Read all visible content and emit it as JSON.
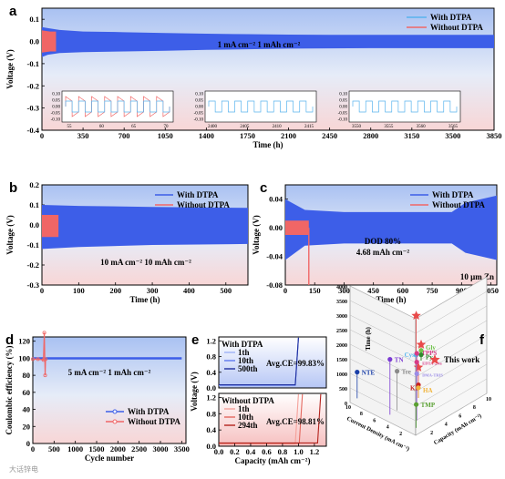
{
  "watermark": "大话锌电",
  "chart_data": [
    {
      "id": "a",
      "type": "line",
      "letter": "a",
      "xlabel": "Time (h)",
      "ylabel": "Voltage (V)",
      "xlim": [
        0,
        3850
      ],
      "ylim": [
        -0.4,
        0.15
      ],
      "xticks": [
        0,
        350,
        700,
        1050,
        1400,
        1750,
        2100,
        2450,
        2800,
        3150,
        3500,
        3850
      ],
      "yticks": [
        -0.4,
        -0.3,
        -0.2,
        -0.1,
        0.0,
        0.1
      ],
      "ytick_labels": [
        "-0.4",
        "-0.3",
        "-0.2",
        "-0.1",
        "0.0",
        "0.1"
      ],
      "series": [
        {
          "name": "With DTPA",
          "color": "#3d5ee8",
          "x": [
            0,
            50,
            150,
            350,
            700,
            1050,
            1400,
            1750,
            2100,
            2450,
            2800,
            3150,
            3500,
            3850
          ],
          "upper": [
            0.065,
            0.06,
            0.052,
            0.045,
            0.042,
            0.038,
            0.035,
            0.033,
            0.031,
            0.03,
            0.03,
            0.03,
            0.03,
            0.03
          ],
          "lower": [
            -0.07,
            -0.06,
            -0.052,
            -0.048,
            -0.045,
            -0.042,
            -0.038,
            -0.035,
            -0.032,
            -0.031,
            -0.03,
            -0.03,
            -0.03,
            -0.03
          ]
        },
        {
          "name": "Without DTPA",
          "color": "#f06666",
          "x": [
            0,
            70,
            120
          ],
          "upper": [
            0.05,
            0.045,
            0.045
          ],
          "lower": [
            -0.05,
            -0.045,
            -0.045
          ]
        }
      ],
      "legend": [
        {
          "name": "With DTPA",
          "color": "#59b4ee"
        },
        {
          "name": "Without DTPA",
          "color": "#f06666"
        }
      ],
      "annotation": "1 mA cm⁻²   1 mAh cm⁻²",
      "insets": [
        {
          "xticks": [
            "55",
            "60",
            "65",
            "70"
          ],
          "yticks": [
            "0.10",
            "0.05",
            "0.00",
            "-0.05",
            "-0.10"
          ],
          "both": true
        },
        {
          "xticks": [
            "2400",
            "2405",
            "2410",
            "2415"
          ],
          "yticks": [
            "0.10",
            "0.05",
            "0.00",
            "-0.05",
            "-0.10"
          ],
          "both": false
        },
        {
          "xticks": [
            "3550",
            "3555",
            "3560",
            "3565"
          ],
          "yticks": [
            "0.10",
            "0.05",
            "0.00",
            "-0.05",
            "-0.10"
          ],
          "both": false
        }
      ]
    },
    {
      "id": "b",
      "type": "line",
      "letter": "b",
      "xlabel": "Time (h)",
      "ylabel": "Voltage (V)",
      "xlim": [
        0,
        560
      ],
      "ylim": [
        -0.3,
        0.2
      ],
      "xticks": [
        0,
        100,
        200,
        300,
        400,
        500
      ],
      "yticks": [
        -0.3,
        -0.2,
        -0.1,
        0.0,
        0.1,
        0.2
      ],
      "ytick_labels": [
        "-0.3",
        "-0.2",
        "-0.1",
        "0.0",
        "0.1",
        "0.2"
      ],
      "series": [
        {
          "name": "With DTPA",
          "color": "#3d5ee8",
          "x": [
            0,
            100,
            300,
            560
          ],
          "upper": [
            0.1,
            0.095,
            0.09,
            0.085
          ],
          "lower": [
            -0.12,
            -0.11,
            -0.1,
            -0.095
          ]
        },
        {
          "name": "Without DTPA",
          "color": "#f06666",
          "x": [
            0,
            45
          ],
          "upper": [
            0.05,
            0.05
          ],
          "lower": [
            -0.06,
            -0.06
          ]
        }
      ],
      "legend": [
        {
          "name": "With DTPA",
          "color": "#3d5ee8"
        },
        {
          "name": "Without DTPA",
          "color": "#f06666"
        }
      ],
      "annotation": "10 mA cm⁻²  10 mAh cm⁻²"
    },
    {
      "id": "c",
      "type": "line",
      "letter": "c",
      "xlabel": "Time (h)",
      "ylabel": "Voltage (V)",
      "xlim": [
        0,
        1080
      ],
      "ylim": [
        -0.08,
        0.06
      ],
      "xticks": [
        0,
        150,
        300,
        450,
        600,
        750,
        900,
        1050
      ],
      "yticks": [
        -0.08,
        -0.04,
        0.0,
        0.04
      ],
      "ytick_labels": [
        "-0.08",
        "-0.04",
        "0.00",
        "0.04"
      ],
      "series": [
        {
          "name": "With DTPA",
          "color": "#3d5ee8",
          "x": [
            0,
            100,
            300,
            600,
            850,
            920,
            1080
          ],
          "upper": [
            0.04,
            0.025,
            0.022,
            0.022,
            0.022,
            0.035,
            0.045
          ],
          "lower": [
            -0.045,
            -0.025,
            -0.022,
            -0.022,
            -0.022,
            -0.035,
            -0.045
          ]
        },
        {
          "name": "Without DTPA",
          "color": "#f06666",
          "x": [
            0,
            120
          ],
          "upper": [
            0.01,
            0.01
          ],
          "lower": [
            -0.01,
            -0.01
          ]
        }
      ],
      "spike_x": 120,
      "legend": [
        {
          "name": "With DTPA",
          "color": "#3d5ee8"
        },
        {
          "name": "Without DTPA",
          "color": "#f06666"
        }
      ],
      "annotation": [
        "DOD 80%",
        "4.68 mAh cm⁻²"
      ],
      "note": "10 μm Zn"
    },
    {
      "id": "d",
      "type": "scatter",
      "letter": "d",
      "xlabel": "Cycle number",
      "ylabel": "Coulombic efficiency (%)",
      "xlim": [
        0,
        3600
      ],
      "ylim": [
        0,
        125
      ],
      "xticks": [
        0,
        500,
        1000,
        1500,
        2000,
        2500,
        3000,
        3500
      ],
      "yticks": [
        0,
        20,
        40,
        60,
        80,
        100,
        120
      ],
      "series": [
        {
          "name": "With DTPA",
          "color": "#3d5ee8",
          "x": [
            0,
            3500
          ],
          "y": [
            99.9,
            99.9
          ]
        },
        {
          "name": "Without DTPA",
          "color": "#f06666",
          "x": [
            0,
            120,
            250,
            270,
            290,
            300
          ],
          "y": [
            99,
            99,
            98,
            130,
            80,
            99
          ]
        }
      ],
      "legend": [
        {
          "name": "With DTPA",
          "color": "#3d5ee8"
        },
        {
          "name": "Without DTPA",
          "color": "#f06666"
        }
      ],
      "annotation": "5 mA cm⁻²  1 mAh cm⁻²"
    },
    {
      "id": "e",
      "type": "line",
      "letter": "e",
      "xlabel": "Capacity (mAh cm⁻²)",
      "ylabel": "Voltage (V)",
      "xlim": [
        0,
        1.35
      ],
      "xticks": [
        0.0,
        0.2,
        0.4,
        0.6,
        0.8,
        1.0,
        1.2
      ],
      "xtick_labels": [
        "0.0",
        "0.2",
        "0.4",
        "0.6",
        "0.8",
        "1.0",
        "1.2"
      ],
      "top": {
        "title": "With DTPA",
        "ylim": [
          0,
          1.3
        ],
        "yticks": [
          0.0,
          0.4,
          0.8,
          1.2
        ],
        "ytick_labels": [
          "0.0",
          "0.4",
          "0.8",
          "1.2"
        ],
        "series": [
          {
            "name": "1th",
            "color": "#9fb2f6",
            "end": 1.0
          },
          {
            "name": "10th",
            "color": "#5d79ee",
            "end": 1.0
          },
          {
            "name": "500th",
            "color": "#1f2f9e",
            "end": 1.0
          }
        ],
        "annotation": "Avg.CE=99.83%"
      },
      "bottom": {
        "title": "Without DTPA",
        "ylim": [
          0,
          1.3
        ],
        "yticks": [
          0.0,
          0.4,
          0.8,
          1.2
        ],
        "ytick_labels": [
          "0.0",
          "0.4",
          "0.8",
          "1.2"
        ],
        "series": [
          {
            "name": "1th",
            "color": "#f5a19a",
            "end": 1.0
          },
          {
            "name": "10th",
            "color": "#e4685f",
            "end": 1.05
          },
          {
            "name": "294th",
            "color": "#b4231d",
            "end": 1.28
          }
        ],
        "annotation": "Avg.CE=98.81%"
      }
    },
    {
      "id": "f",
      "type": "scatter",
      "letter": "f",
      "xlabel": "Current Density (mA cm⁻²)",
      "ylabel": "Time (h)",
      "zlabel": "Capacity (mAh cm⁻²)",
      "zticks": [
        0,
        500,
        1000,
        1500,
        2000,
        2500,
        3000,
        3500,
        4000
      ],
      "xticks": [
        2,
        4,
        6,
        8,
        10
      ],
      "yticks": [
        2,
        4,
        6,
        8,
        10
      ],
      "legend": "This work",
      "points": [
        {
          "name": "This work",
          "color": "#e84a4a",
          "shape": "star",
          "x": 1,
          "y": 1,
          "z": 3850
        },
        {
          "name": "This work",
          "color": "#e84a4a",
          "shape": "star",
          "x": 10,
          "y": 10,
          "z": 550
        },
        {
          "name": "This work",
          "color": "#e84a4a",
          "shape": "star",
          "x": 5,
          "y": 5,
          "z": 1050
        },
        {
          "name": "Cys",
          "color": "#57b6ee",
          "shape": "circle",
          "x": 1,
          "y": 1,
          "z": 2500
        },
        {
          "name": "TPPS",
          "color": "#d63b86",
          "shape": "circle",
          "x": 2,
          "y": 2,
          "z": 2300
        },
        {
          "name": "EDTA-2Na",
          "color": "#d63b86",
          "shape": "circle",
          "x": 2,
          "y": 2,
          "z": 2000
        },
        {
          "name": "TN",
          "color": "#7b3bd2",
          "shape": "circle",
          "x": 5,
          "y": 1,
          "z": 1900
        },
        {
          "name": "DMA-TRIS",
          "color": "#9b8ce6",
          "shape": "circle",
          "x": 2,
          "y": 2,
          "z": 1600
        },
        {
          "name": "Tre",
          "color": "#8a8a8a",
          "shape": "circle",
          "x": 5,
          "y": 2,
          "z": 1350
        },
        {
          "name": "TMP",
          "color": "#5aa032",
          "shape": "circle",
          "x": 1,
          "y": 1,
          "z": 800
        },
        {
          "name": "NTE",
          "color": "#1a3fa8",
          "shape": "circle",
          "x": 10,
          "y": 1,
          "z": 900
        },
        {
          "name": "KI",
          "color": "#c82020",
          "shape": "circle",
          "x": 5,
          "y": 5,
          "z": 450
        },
        {
          "name": "HA",
          "color": "#f0b43c",
          "shape": "circle",
          "x": 5,
          "y": 5,
          "z": 350
        },
        {
          "name": "Gly",
          "color": "#6fc24a",
          "shape": "circle",
          "x": 10,
          "y": 10,
          "z": 350
        },
        {
          "name": "Py",
          "color": "#2f8a2f",
          "shape": "circle",
          "x": 10,
          "y": 10,
          "z": 200
        }
      ]
    }
  ]
}
